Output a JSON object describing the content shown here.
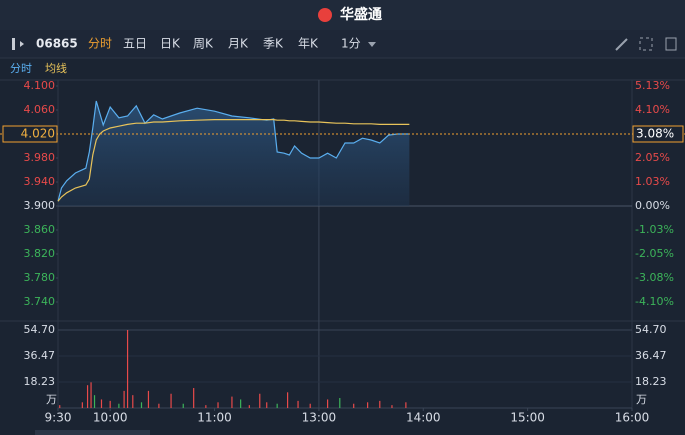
{
  "header": {
    "title": "华盛通"
  },
  "toolbar": {
    "code": "06865",
    "tabs": [
      "分时",
      "五日",
      "日K",
      "周K",
      "月K",
      "季K",
      "年K"
    ],
    "interval": "1分"
  },
  "chart_data": [
    {
      "type": "line",
      "x": [
        "9:30",
        "9:32",
        "9:35",
        "9:40",
        "9:46",
        "9:48",
        "9:50",
        "9:52",
        "9:54",
        "9:56",
        "10:00",
        "10:05",
        "10:10",
        "10:15",
        "10:20",
        "10:25",
        "10:30",
        "10:40",
        "10:50",
        "11:00",
        "11:10",
        "11:20",
        "11:30",
        "11:34",
        "11:36",
        "11:40",
        "11:43",
        "11:46",
        "11:50",
        "11:55",
        "12:00",
        "13:00",
        "13:05",
        "13:10",
        "13:15",
        "13:20",
        "13:25",
        "13:30",
        "13:35",
        "13:40",
        "13:45",
        "13:52"
      ],
      "series": [
        {
          "name": "分时",
          "color": "#5aaeef",
          "values": [
            3.908,
            3.93,
            3.942,
            3.955,
            3.963,
            3.99,
            4.03,
            4.075,
            4.055,
            4.035,
            4.065,
            4.047,
            4.05,
            4.067,
            4.038,
            4.052,
            4.045,
            4.055,
            4.063,
            4.058,
            4.05,
            4.047,
            4.043,
            4.045,
            3.99,
            3.988,
            3.985,
            4.0,
            3.988,
            3.98,
            3.98,
            3.98,
            3.988,
            3.98,
            4.005,
            4.005,
            4.013,
            4.01,
            4.005,
            4.018,
            4.02,
            4.02
          ]
        },
        {
          "name": "均线",
          "color": "#e8c35a",
          "values": [
            3.908,
            3.915,
            3.922,
            3.93,
            3.935,
            3.945,
            3.985,
            4.01,
            4.02,
            4.025,
            4.03,
            4.033,
            4.036,
            4.038,
            4.038,
            4.04,
            4.04,
            4.042,
            4.043,
            4.044,
            4.044,
            4.044,
            4.044,
            4.044,
            4.043,
            4.043,
            4.042,
            4.042,
            4.041,
            4.04,
            4.04,
            4.04,
            4.039,
            4.038,
            4.038,
            4.037,
            4.037,
            4.037,
            4.036,
            4.036,
            4.036,
            4.036
          ]
        }
      ],
      "xlim": [
        "9:30",
        "16:00"
      ],
      "ylim": [
        3.71,
        4.11
      ],
      "yticks": [
        {
          "value": 4.1,
          "label": "4.100"
        },
        {
          "value": 4.06,
          "label": "4.060"
        },
        {
          "value": 4.02,
          "label": "4.020"
        },
        {
          "value": 3.98,
          "label": "3.980"
        },
        {
          "value": 3.94,
          "label": "3.940"
        },
        {
          "value": 3.9,
          "label": "3.900"
        },
        {
          "value": 3.86,
          "label": "3.860"
        },
        {
          "value": 3.82,
          "label": "3.820"
        },
        {
          "value": 3.78,
          "label": "3.780"
        },
        {
          "value": 3.74,
          "label": "3.740"
        }
      ],
      "y2lim": [
        -4.87,
        5.38
      ],
      "y2ticks": [
        {
          "value": 5.13,
          "label": "5.13%"
        },
        {
          "value": 4.1,
          "label": "4.10%"
        },
        {
          "value": 3.08,
          "label": "3.08%"
        },
        {
          "value": 2.05,
          "label": "2.05%"
        },
        {
          "value": 1.03,
          "label": "1.03%"
        },
        {
          "value": 0,
          "label": "0.00%"
        },
        {
          "value": -1.03,
          "label": "-1.03%"
        },
        {
          "value": -2.05,
          "label": "-2.05%"
        },
        {
          "value": -3.08,
          "label": "-3.08%"
        },
        {
          "value": -4.1,
          "label": "-4.10%"
        }
      ],
      "last_price": {
        "value": 4.02,
        "label": "4.020"
      },
      "last_change": {
        "value": 3.08,
        "label": "3.08%"
      }
    },
    {
      "type": "bar",
      "x": [
        "9:31",
        "9:44",
        "9:47",
        "9:49",
        "9:51",
        "9:55",
        "10:00",
        "10:05",
        "10:08",
        "10:10",
        "10:13",
        "10:18",
        "10:22",
        "10:28",
        "10:35",
        "10:42",
        "10:48",
        "10:55",
        "11:02",
        "11:10",
        "11:15",
        "11:20",
        "11:26",
        "11:30",
        "11:36",
        "11:42",
        "11:48",
        "11:55",
        "13:05",
        "13:12",
        "13:20",
        "13:28",
        "13:35",
        "13:42",
        "13:50"
      ],
      "values": [
        2,
        4,
        16,
        18,
        9,
        6,
        5,
        3,
        12,
        54.7,
        9,
        4,
        12,
        3,
        10,
        3,
        14,
        2,
        4,
        8,
        6,
        2,
        10,
        4,
        3,
        11,
        5,
        3,
        6,
        7,
        3,
        4,
        5,
        2,
        4
      ],
      "colors": [
        "#e84a4a",
        "#e84a4a",
        "#e84a4a",
        "#e84a4a",
        "#3cb45a",
        "#e84a4a",
        "#e84a4a",
        "#3cb45a",
        "#e84a4a",
        "#e84a4a",
        "#e84a4a",
        "#3cb45a",
        "#e84a4a",
        "#e84a4a",
        "#e84a4a",
        "#3cb45a",
        "#e84a4a",
        "#e84a4a",
        "#e84a4a",
        "#e84a4a",
        "#3cb45a",
        "#e84a4a",
        "#e84a4a",
        "#e84a4a",
        "#3cb45a",
        "#e84a4a",
        "#e84a4a",
        "#e84a4a",
        "#e84a4a",
        "#3cb45a",
        "#e84a4a",
        "#e84a4a",
        "#e84a4a",
        "#e84a4a",
        "#e84a4a"
      ],
      "xlim": [
        "9:30",
        "16:00"
      ],
      "ylim": [
        0,
        54.7
      ],
      "yticks": [
        {
          "value": 54.7,
          "label": "54.70"
        },
        {
          "value": 36.47,
          "label": "36.47"
        },
        {
          "value": 18.23,
          "label": "18.23"
        }
      ],
      "unit": "万",
      "xticks": [
        "9:30",
        "10:00",
        "11:00",
        "13:00",
        "14:00",
        "15:00",
        "16:00"
      ]
    }
  ]
}
